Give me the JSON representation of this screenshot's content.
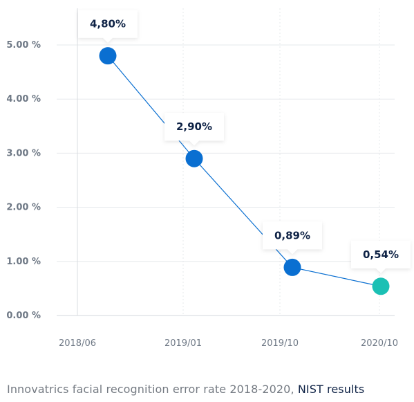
{
  "chart_data": {
    "type": "line",
    "title": "",
    "xlabel": "",
    "ylabel": "",
    "y_ticks": [
      "0.00 %",
      "1.00 %",
      "2.00 %",
      "3.00 %",
      "4.00 %",
      "5.00 %"
    ],
    "ylim": [
      0,
      5.5
    ],
    "grid": true,
    "x_ticks": [
      "2018/06",
      "2019/01",
      "2019/10",
      "2020/10"
    ],
    "series": [
      {
        "values": [
          4.8,
          2.9,
          0.89,
          0.54
        ],
        "labels": [
          "4,80%",
          "2,90%",
          "0,89%",
          "0,54%"
        ],
        "colors": [
          "#0a6fd1",
          "#0a6fd1",
          "#0a6fd1",
          "#1bc0b4"
        ]
      }
    ],
    "line_color": "#0a6fd1"
  },
  "caption": {
    "text": "Innovatrics facial recognition error rate 2018-2020, ",
    "link": "NIST results"
  }
}
